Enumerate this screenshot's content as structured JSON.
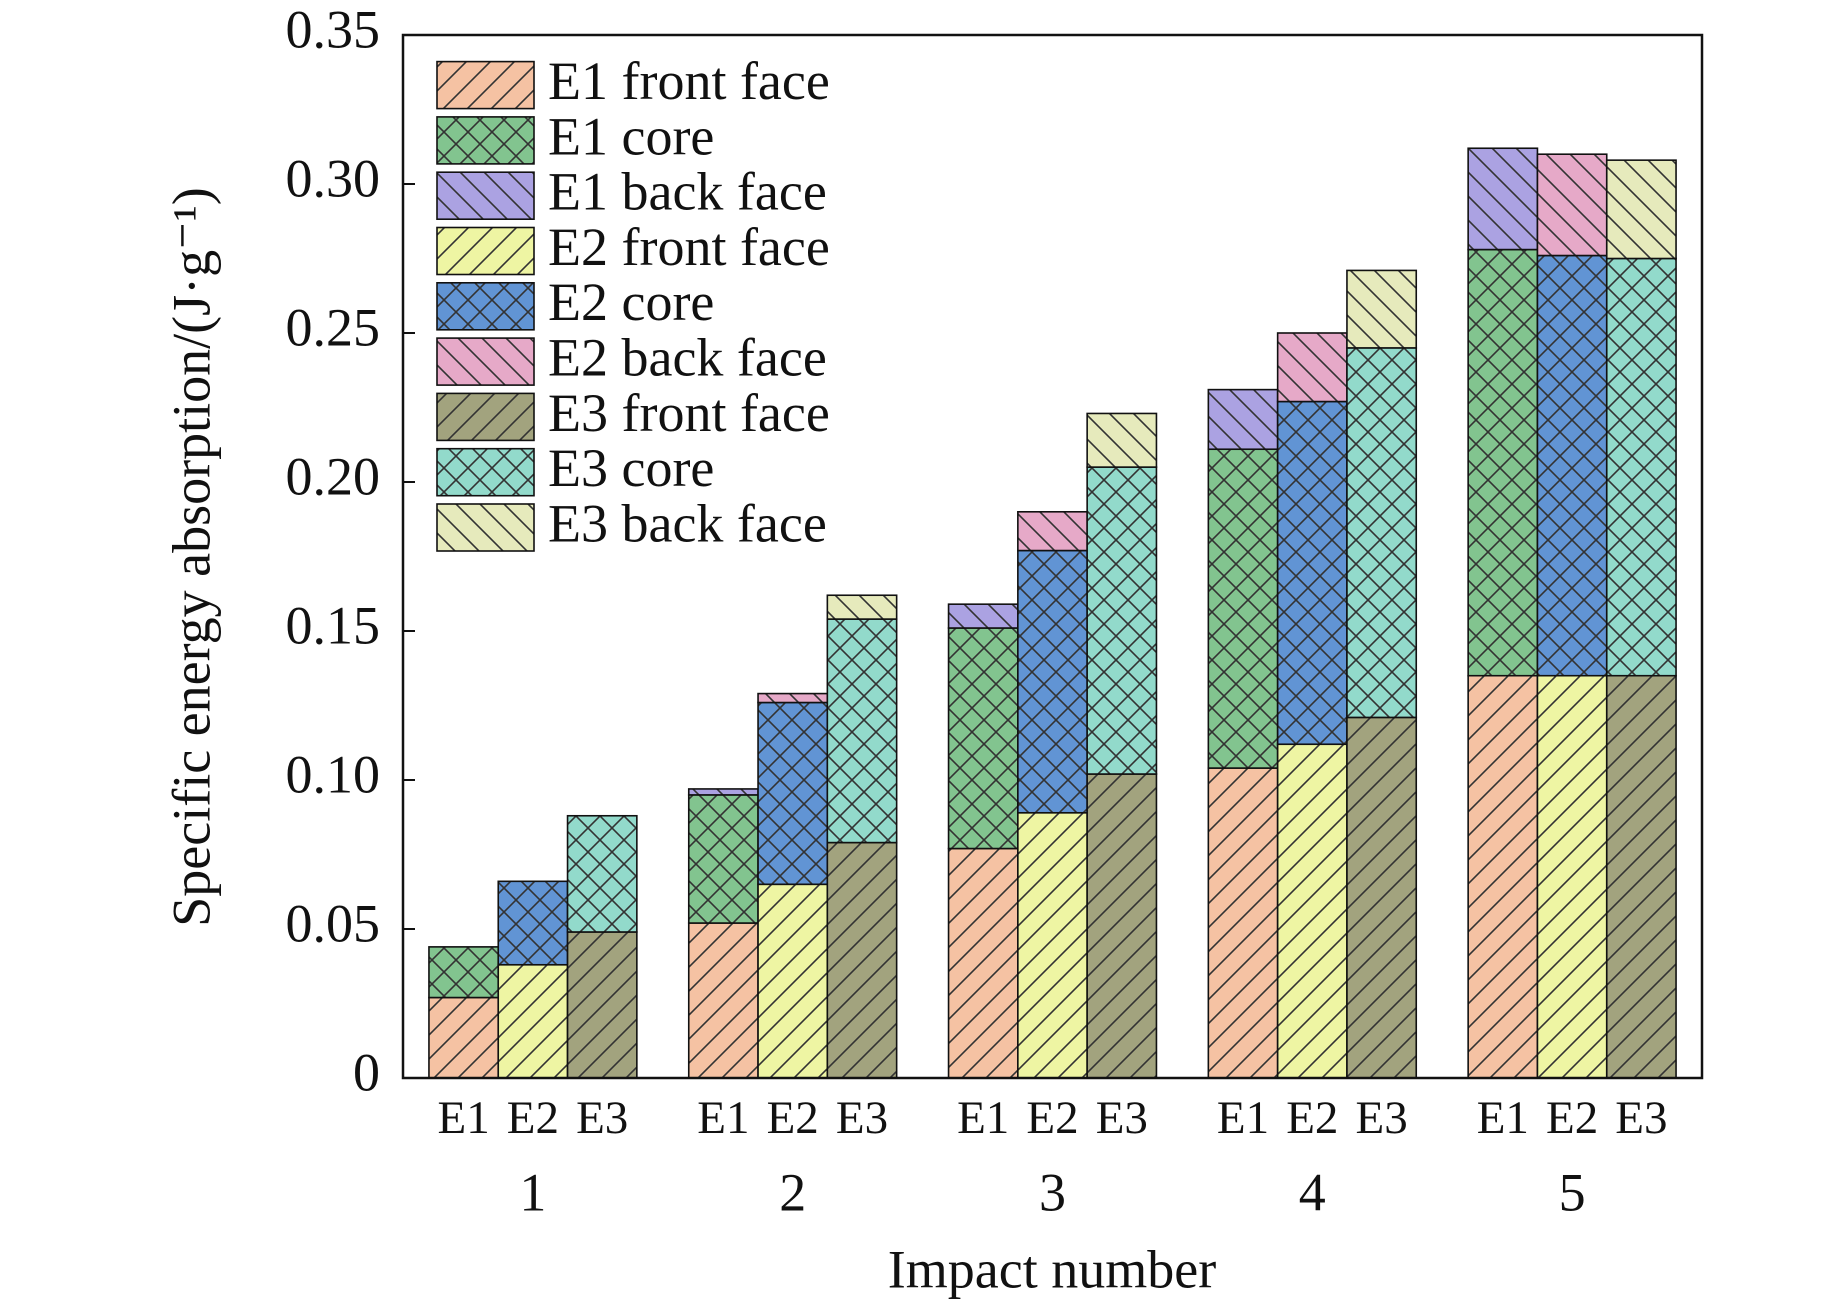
{
  "chart_data": {
    "type": "stacked_grouped_bar",
    "y_label": "Specific energy absorption/(J·g⁻¹)",
    "x_label": "Impact number",
    "categories": [
      "1",
      "2",
      "3",
      "4",
      "5"
    ],
    "stacks": [
      "E1",
      "E2",
      "E3"
    ],
    "ylim": [
      0,
      0.35
    ],
    "yticks": [
      0,
      0.05,
      {
        "value": 0.1,
        "label": "0.10"
      },
      0.15,
      {
        "value": 0.2,
        "label": "0.20"
      },
      0.25,
      {
        "value": 0.3,
        "label": "0.30"
      },
      0.35
    ],
    "legend": "upper left",
    "series": [
      {
        "name": "E1 front face",
        "stack": 0,
        "hatch": "/",
        "color": "#f5c2a3",
        "values": [
          0.027,
          0.052,
          0.077,
          0.104,
          0.135
        ]
      },
      {
        "name": "E1 core",
        "stack": 0,
        "hatch": "x",
        "color": "#82c48f",
        "values": [
          0.017,
          0.043,
          0.074,
          0.107,
          0.143
        ]
      },
      {
        "name": "E1 back face",
        "stack": 0,
        "hatch": "\\",
        "color": "#aba2e2",
        "values": [
          0,
          0.002,
          0.008,
          0.02,
          0.034
        ]
      },
      {
        "name": "E2 front face",
        "stack": 1,
        "hatch": "/",
        "color": "#eef5a3",
        "values": [
          0.038,
          0.065,
          0.089,
          0.112,
          0.135
        ]
      },
      {
        "name": "E2 core",
        "stack": 1,
        "hatch": "x",
        "color": "#6194d4",
        "values": [
          0.028,
          0.061,
          0.088,
          0.115,
          0.141
        ]
      },
      {
        "name": "E2 back face",
        "stack": 1,
        "hatch": "\\",
        "color": "#e6a9c8",
        "values": [
          0,
          0.003,
          0.013,
          0.023,
          0.034
        ]
      },
      {
        "name": "E3 front face",
        "stack": 2,
        "hatch": "/",
        "color": "#a2a37e",
        "values": [
          0.049,
          0.079,
          0.102,
          0.121,
          0.135
        ]
      },
      {
        "name": "E3 core",
        "stack": 2,
        "hatch": "x",
        "color": "#92dacb",
        "values": [
          0.039,
          0.075,
          0.103,
          0.124,
          0.14
        ]
      },
      {
        "name": "E3 back face",
        "stack": 2,
        "hatch": "\\",
        "color": "#e6eabc",
        "values": [
          0,
          0.008,
          0.018,
          0.026,
          0.033
        ]
      }
    ]
  }
}
